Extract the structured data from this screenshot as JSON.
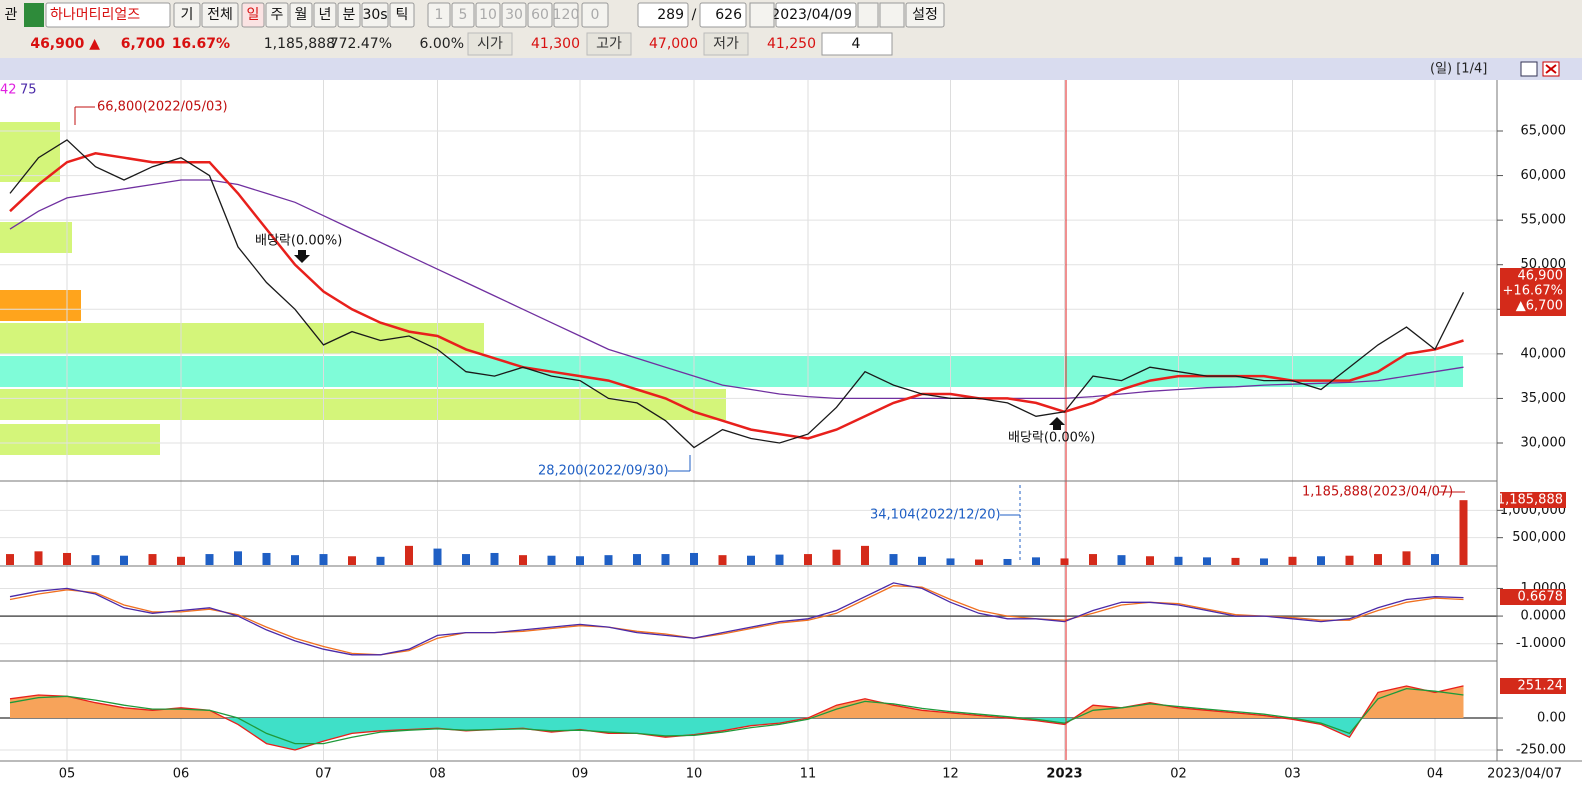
{
  "toolbar": {
    "row1": [
      "관",
      "하나머티리얼즈",
      "기",
      "전체",
      "일",
      "주",
      "월",
      "년",
      "분",
      "30s",
      "틱",
      "1",
      "5",
      "10",
      "30",
      "60",
      "120",
      "0",
      "289",
      "/",
      "626",
      "2023/04/09",
      "설정"
    ],
    "row2": [
      "46,900 ▲",
      "6,700",
      "16.67%",
      "1,185,888",
      "772.47%",
      "6.00%",
      "시가",
      "41,300",
      "고가",
      "47,000",
      "저가",
      "41,250",
      "4"
    ]
  },
  "chart": {
    "header": "(일) [1/4]",
    "legend": [
      "42",
      "75"
    ],
    "categories": [
      null,
      null,
      "05",
      null,
      null,
      null,
      "06",
      null,
      null,
      null,
      null,
      "07",
      null,
      null,
      null,
      "08",
      null,
      null,
      null,
      null,
      "09",
      null,
      null,
      null,
      "10",
      null,
      null,
      null,
      "11",
      null,
      null,
      null,
      null,
      "12",
      null,
      null,
      null,
      "2023",
      null,
      null,
      null,
      "02",
      null,
      null,
      null,
      "03",
      null,
      null,
      null,
      null,
      "04",
      null
    ],
    "last_date": "2023/04/07",
    "panels": [
      {
        "type": "line",
        "ylim": [
          25850,
          70720
        ],
        "yticks": [
          {
            "value": 65000,
            "label": "65,000"
          },
          {
            "value": 60000,
            "label": "60,000"
          },
          {
            "value": 55000,
            "label": "55,000"
          },
          {
            "value": 50000,
            "label": "50,000"
          },
          {
            "value": 45000,
            "label": "45,000"
          },
          {
            "value": 40000,
            "label": "40,000"
          },
          {
            "value": 35000,
            "label": "35,000"
          },
          {
            "value": 30000,
            "label": "30,000"
          }
        ],
        "series": [
          {
            "color": "#7030a0",
            "values": [
              54000,
              56000,
              57500,
              58000,
              58500,
              59000,
              59500,
              59500,
              59000,
              58000,
              57000,
              55500,
              54000,
              52500,
              51000,
              49500,
              48000,
              46500,
              45000,
              43500,
              42000,
              40500,
              39500,
              38500,
              37500,
              36500,
              36000,
              35500,
              35200,
              35000,
              35000,
              35000,
              35000,
              35000,
              35000,
              35000,
              35000,
              35000,
              35200,
              35500,
              35800,
              36000,
              36200,
              36300,
              36500,
              36600,
              36700,
              36800,
              37000,
              37500,
              38000,
              38500
            ]
          },
          {
            "color": "#e8201c",
            "values": [
              56000,
              59000,
              61500,
              62500,
              62000,
              61500,
              61500,
              61500,
              58000,
              54000,
              50000,
              47000,
              45000,
              43500,
              42500,
              42000,
              40500,
              39500,
              38500,
              38000,
              37500,
              37000,
              36000,
              35000,
              33500,
              32500,
              31500,
              31000,
              30500,
              31500,
              33000,
              34500,
              35500,
              35500,
              35000,
              35000,
              34500,
              33500,
              34500,
              36000,
              37000,
              37500,
              37500,
              37500,
              37500,
              37000,
              37000,
              37000,
              38000,
              40000,
              40500,
              41500
            ]
          },
          {
            "color": "#1a1a1a",
            "values": [
              58000,
              62000,
              64000,
              61000,
              59500,
              61000,
              62000,
              60000,
              52000,
              48000,
              45000,
              41000,
              42500,
              41500,
              42000,
              40500,
              38000,
              37500,
              38500,
              37500,
              37000,
              35000,
              34500,
              32500,
              29500,
              31500,
              30500,
              30000,
              31000,
              34000,
              38000,
              36500,
              35500,
              35000,
              35000,
              34500,
              33000,
              33500,
              37500,
              37000,
              38500,
              38000,
              37500,
              37500,
              37000,
              37000,
              36000,
              38500,
              41000,
              43000,
              40500,
              46900
            ]
          }
        ],
        "annotations": [
          "66,800(2022/05/03)",
          "배당락(0.00%)",
          "28,200(2022/09/30)",
          "배당락(0.00%)"
        ],
        "tag": [
          "46,900",
          "+16.67%",
          "▲6,700"
        ]
      },
      {
        "type": "bar",
        "ylim": [
          0,
          1500000
        ],
        "yticks": [
          {
            "value": 1000000,
            "label": "1,000,000"
          },
          {
            "value": 500000,
            "label": "500,000"
          }
        ],
        "series": [
          {
            "color": "#1f5fc4",
            "values": [
              200000,
              250000,
              220000,
              180000,
              170000,
              200000,
              150000,
              200000,
              250000,
              220000,
              180000,
              200000,
              160000,
              150000,
              350000,
              300000,
              200000,
              220000,
              180000,
              170000,
              160000,
              180000,
              200000,
              200000,
              220000,
              180000,
              170000,
              190000,
              200000,
              280000,
              350000,
              200000,
              150000,
              120000,
              100000,
              110000,
              140000,
              120000,
              200000,
              180000,
              160000,
              150000,
              140000,
              130000,
              120000,
              150000,
              160000,
              170000,
              200000,
              250000,
              200000,
              1185888
            ]
          }
        ],
        "annotations": [
          "34,104(2022/12/20)",
          "1,185,888(2023/04/07)"
        ],
        "tag": [
          "1,185,888"
        ]
      },
      {
        "type": "line",
        "ylim": [
          -1.59,
          1.74
        ],
        "yticks": [
          {
            "value": 1,
            "label": "1.0000"
          },
          {
            "value": 0,
            "label": "0.0000"
          },
          {
            "value": -1,
            "label": "-1.0000"
          }
        ],
        "series": [
          {
            "color": "#f07020",
            "values": [
              0.6,
              0.8,
              0.95,
              0.85,
              0.4,
              0.15,
              0.15,
              0.25,
              0.05,
              -0.4,
              -0.8,
              -1.1,
              -1.35,
              -1.4,
              -1.25,
              -0.8,
              -0.6,
              -0.6,
              -0.55,
              -0.45,
              -0.35,
              -0.4,
              -0.55,
              -0.65,
              -0.8,
              -0.65,
              -0.45,
              -0.25,
              -0.15,
              0.1,
              0.6,
              1.1,
              1.05,
              0.6,
              0.2,
              0.0,
              -0.1,
              -0.15,
              0.1,
              0.4,
              0.5,
              0.45,
              0.25,
              0.05,
              0.0,
              -0.05,
              -0.15,
              -0.15,
              0.2,
              0.5,
              0.65,
              0.6
            ]
          },
          {
            "color": "#4b2aa8",
            "values": [
              0.7,
              0.9,
              1.0,
              0.8,
              0.3,
              0.1,
              0.2,
              0.3,
              0.0,
              -0.5,
              -0.9,
              -1.2,
              -1.4,
              -1.4,
              -1.2,
              -0.7,
              -0.6,
              -0.6,
              -0.5,
              -0.4,
              -0.3,
              -0.4,
              -0.6,
              -0.7,
              -0.8,
              -0.6,
              -0.4,
              -0.2,
              -0.1,
              0.2,
              0.7,
              1.2,
              1.0,
              0.5,
              0.1,
              -0.1,
              -0.1,
              -0.2,
              0.2,
              0.5,
              0.5,
              0.4,
              0.2,
              0.0,
              0.0,
              -0.1,
              -0.2,
              -0.1,
              0.3,
              0.6,
              0.7,
              0.6678
            ]
          }
        ],
        "tag": [
          "0.6678"
        ]
      },
      {
        "type": "area",
        "ylim": [
          -328,
          430
        ],
        "yticks": [
          {
            "value": 0,
            "label": "0.00"
          },
          {
            "value": -250,
            "label": "-250.00"
          }
        ],
        "series": [
          {
            "color": "#e8201c",
            "values": [
              150,
              180,
              170,
              120,
              80,
              60,
              80,
              60,
              -50,
              -200,
              -250,
              -180,
              -120,
              -100,
              -90,
              -80,
              -100,
              -90,
              -80,
              -110,
              -90,
              -120,
              -120,
              -150,
              -130,
              -100,
              -60,
              -40,
              0,
              100,
              150,
              100,
              60,
              40,
              20,
              0,
              -20,
              -50,
              100,
              80,
              120,
              80,
              60,
              40,
              20,
              -10,
              -50,
              -150,
              200,
              250,
              200,
              251.24
            ]
          },
          {
            "color": "#1e9a3a",
            "values": [
              120,
              160,
              170,
              140,
              100,
              70,
              70,
              60,
              0,
              -120,
              -200,
              -200,
              -150,
              -110,
              -95,
              -85,
              -95,
              -90,
              -85,
              -100,
              -95,
              -110,
              -120,
              -140,
              -135,
              -110,
              -75,
              -50,
              -10,
              70,
              130,
              110,
              75,
              50,
              30,
              10,
              -10,
              -40,
              60,
              80,
              110,
              90,
              70,
              50,
              30,
              0,
              -40,
              -120,
              150,
              230,
              210,
              180
            ]
          }
        ],
        "tag": [
          "251.24"
        ]
      }
    ]
  }
}
